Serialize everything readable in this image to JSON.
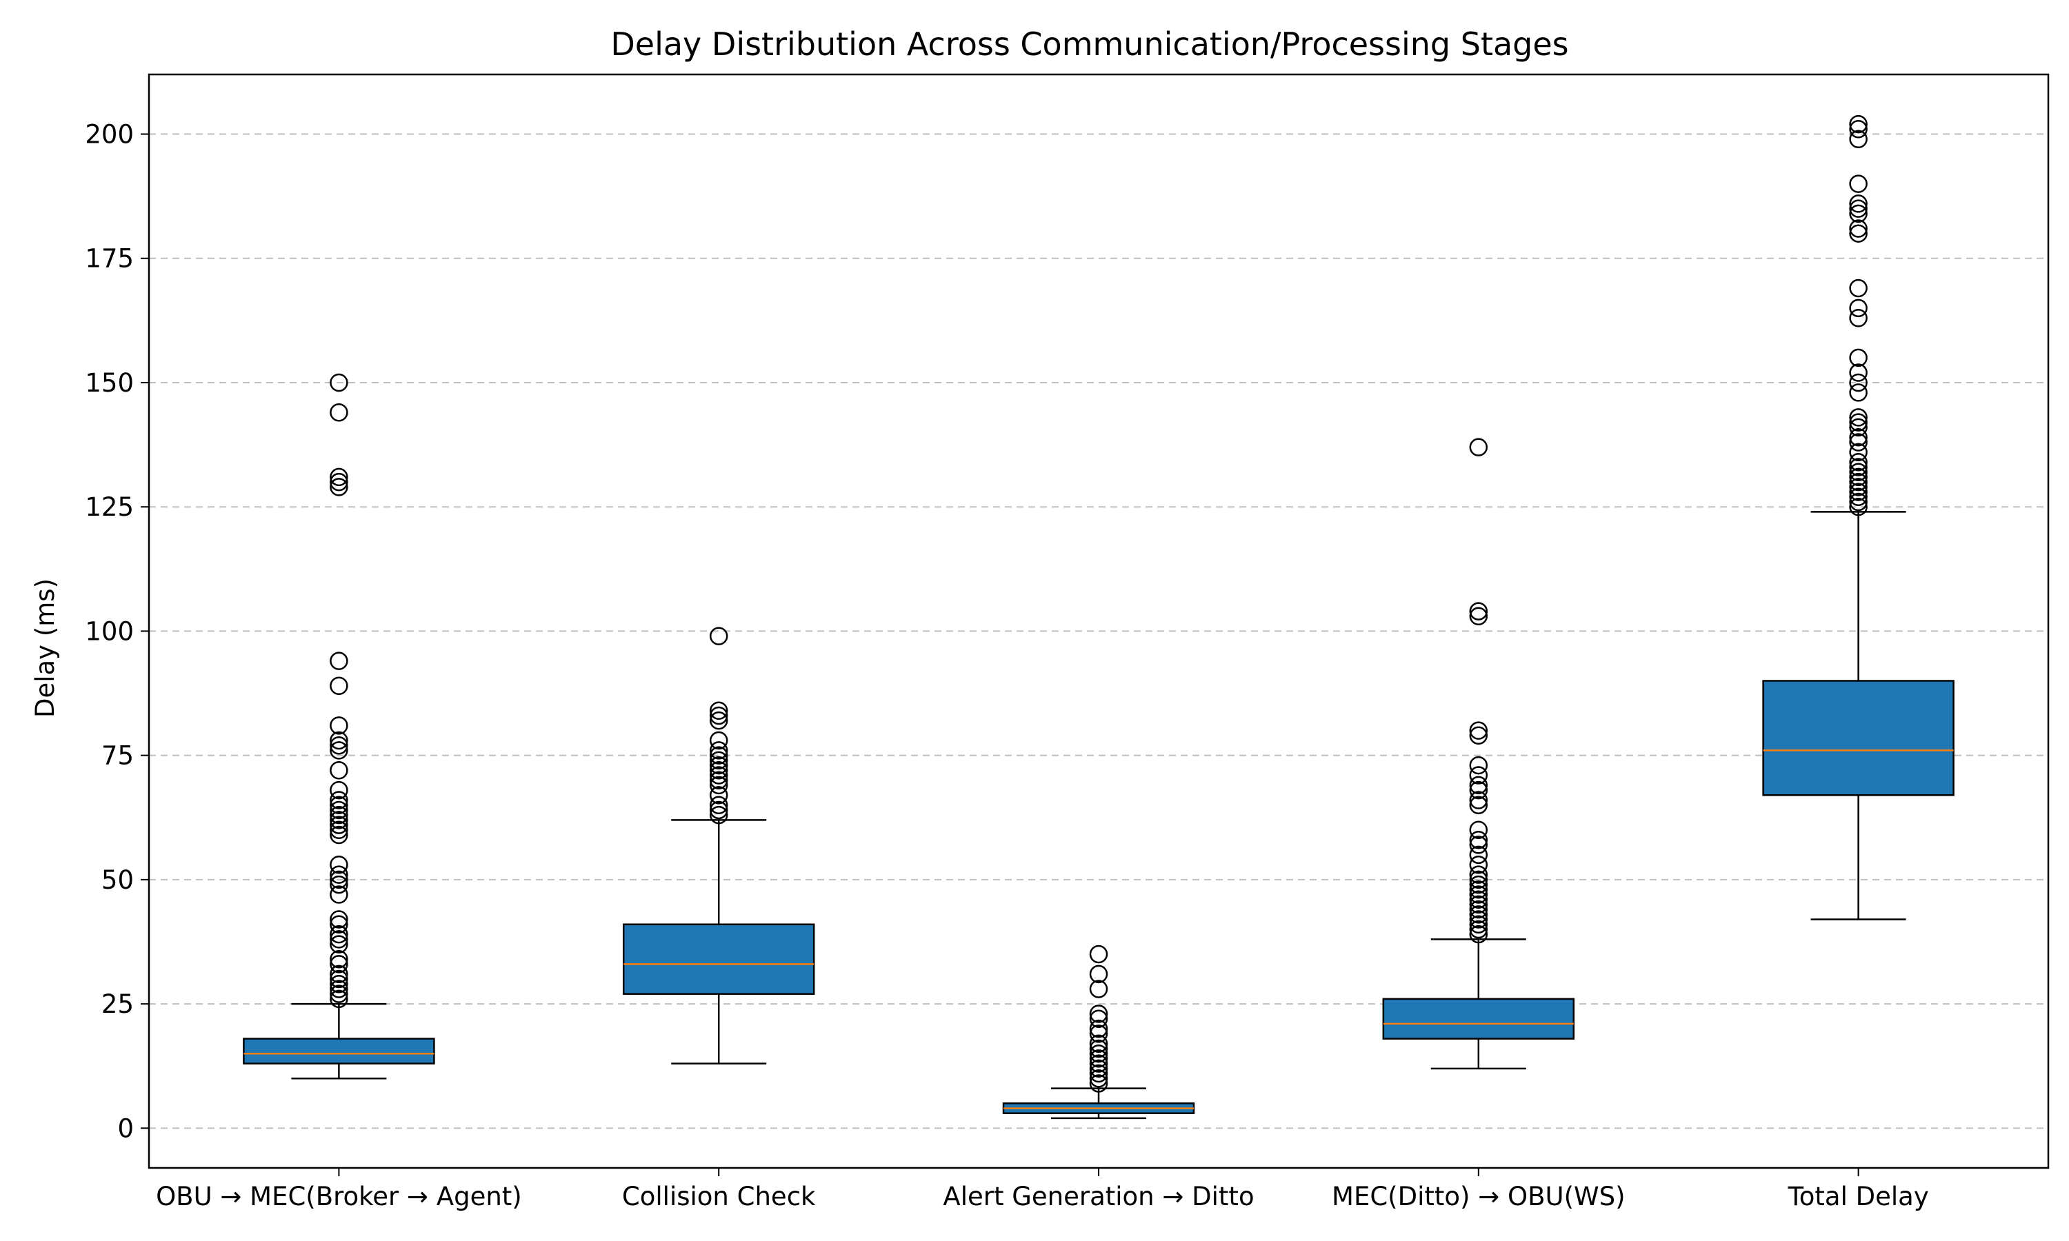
{
  "chart_data": {
    "type": "box",
    "title": "Delay Distribution Across Communication/Processing Stages",
    "xlabel": "",
    "ylabel": "Delay (ms)",
    "ylim": [
      -8,
      212
    ],
    "yticks": [
      0,
      25,
      50,
      75,
      100,
      125,
      150,
      175,
      200
    ],
    "grid": "y-dashed",
    "colors": {
      "box": "#1f77b4",
      "median": "#ff7f0e",
      "edge": "#000000",
      "grid": "#b0b0b0"
    },
    "categories": [
      "OBU → MEC(Broker → Agent)",
      "Collision Check",
      "Alert Generation → Ditto",
      "MEC(Ditto) → OBU(WS)",
      "Total Delay"
    ],
    "boxes": [
      {
        "whisker_low": 10,
        "q1": 13,
        "median": 15,
        "q3": 18,
        "whisker_high": 25,
        "outliers": [
          26,
          27,
          28,
          29,
          30,
          31,
          33,
          34,
          37,
          38,
          39,
          41,
          42,
          47,
          49,
          50,
          51,
          53,
          59,
          60,
          61,
          62,
          63,
          64,
          65,
          66,
          68,
          72,
          76,
          77,
          78,
          81,
          89,
          94,
          129,
          130,
          131,
          144,
          150
        ]
      },
      {
        "whisker_low": 13,
        "q1": 27,
        "median": 33,
        "q3": 41,
        "whisker_high": 62,
        "outliers": [
          63,
          64,
          65,
          67,
          69,
          70,
          71,
          72,
          73,
          74,
          75,
          76,
          78,
          82,
          83,
          84,
          99
        ]
      },
      {
        "whisker_low": 2,
        "q1": 3,
        "median": 4,
        "q3": 5,
        "whisker_high": 8,
        "outliers": [
          9,
          10,
          11,
          12,
          13,
          14,
          15,
          16,
          17,
          19,
          20,
          22,
          23,
          28,
          31,
          35
        ]
      },
      {
        "whisker_low": 12,
        "q1": 18,
        "median": 21,
        "q3": 26,
        "whisker_high": 38,
        "outliers": [
          39,
          40,
          41,
          42,
          43,
          44,
          45,
          46,
          47,
          48,
          49,
          50,
          51,
          53,
          55,
          57,
          58,
          60,
          65,
          66,
          68,
          69,
          71,
          73,
          79,
          80,
          103,
          104,
          137
        ]
      },
      {
        "whisker_low": 42,
        "q1": 67,
        "median": 76,
        "q3": 90,
        "whisker_high": 124,
        "outliers": [
          125,
          126,
          127,
          128,
          129,
          130,
          131,
          132,
          133,
          134,
          136,
          138,
          139,
          141,
          142,
          143,
          148,
          150,
          152,
          155,
          163,
          165,
          169,
          180,
          181,
          184,
          185,
          186,
          190,
          199,
          201,
          202
        ]
      }
    ]
  }
}
